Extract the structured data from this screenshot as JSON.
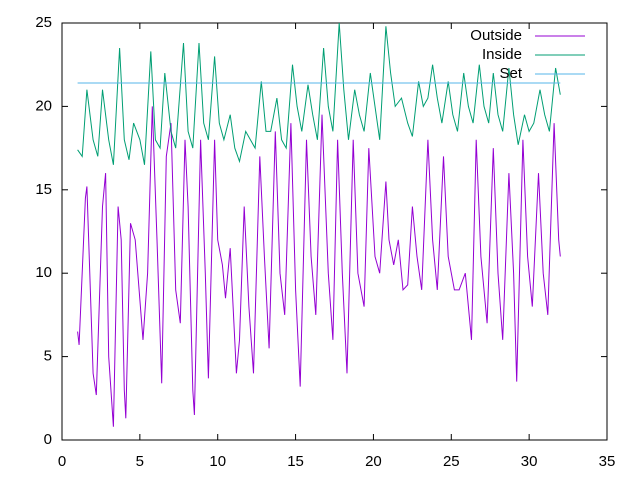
{
  "chart_data": {
    "type": "line",
    "xlim": [
      0,
      35
    ],
    "xticks": [
      0,
      5,
      10,
      15,
      20,
      25,
      30,
      35
    ],
    "ylim": [
      0,
      25
    ],
    "yticks": [
      0,
      5,
      10,
      15,
      20,
      25
    ],
    "legend": "top-right",
    "series": [
      {
        "name": "Outside",
        "color": "#9400d3",
        "x": [
          1,
          1.1,
          1.5,
          1.6,
          2.0,
          2.2,
          2.6,
          2.8,
          3.0,
          3.3,
          3.6,
          3.8,
          4.0,
          4.1,
          4.4,
          4.7,
          5.2,
          5.5,
          5.8,
          6.1,
          6.4,
          6.7,
          7.0,
          7.3,
          7.6,
          7.9,
          8.1,
          8.4,
          8.5,
          8.9,
          9.2,
          9.4,
          9.8,
          10.0,
          10.3,
          10.5,
          10.8,
          11.2,
          11.4,
          11.7,
          12.0,
          12.3,
          12.7,
          13.0,
          13.3,
          13.7,
          14.0,
          14.3,
          14.7,
          15.0,
          15.3,
          15.7,
          16.0,
          16.3,
          16.7,
          17.1,
          17.4,
          17.7,
          18.0,
          18.3,
          18.7,
          19.0,
          19.4,
          19.7,
          20.1,
          20.4,
          20.8,
          21.0,
          21.3,
          21.6,
          21.9,
          22.2,
          22.5,
          22.8,
          23.1,
          23.5,
          23.8,
          24.1,
          24.5,
          24.8,
          25.2,
          25.5,
          25.9,
          26.3,
          26.6,
          26.9,
          27.3,
          27.7,
          28.0,
          28.3,
          28.7,
          29.0,
          29.2,
          29.6,
          29.9,
          30.2,
          30.6,
          30.9,
          31.2,
          31.6,
          31.9,
          32.0
        ],
        "values": [
          6.5,
          5.7,
          14.5,
          15.2,
          4,
          2.7,
          14,
          16,
          5,
          0.8,
          14,
          12,
          3,
          1.3,
          13,
          12,
          6,
          10,
          20,
          12,
          3.4,
          17,
          19,
          9,
          7,
          18,
          14,
          3,
          1.5,
          18,
          10,
          3.7,
          18,
          12,
          10.5,
          8.5,
          11.5,
          4,
          6,
          14,
          8,
          4,
          17,
          11,
          5.5,
          18.5,
          10,
          7.5,
          19,
          9,
          3.2,
          18,
          11,
          7.5,
          19.5,
          10,
          6,
          18,
          10,
          4,
          18,
          10,
          8,
          17.5,
          11,
          10,
          15.5,
          12,
          10.5,
          12,
          9,
          9.3,
          14,
          11,
          9,
          18,
          12,
          9,
          17,
          11,
          9,
          9,
          10,
          6,
          18,
          11,
          7,
          17.5,
          10,
          6,
          16,
          10,
          3.5,
          18,
          11,
          8,
          16,
          10,
          7.5,
          19,
          12,
          11
        ]
      },
      {
        "name": "Inside",
        "color": "#009e73",
        "x": [
          1,
          1.3,
          1.6,
          2.0,
          2.3,
          2.6,
          3.0,
          3.3,
          3.7,
          4.0,
          4.3,
          4.6,
          5.0,
          5.3,
          5.7,
          6.0,
          6.3,
          6.6,
          7.0,
          7.3,
          7.8,
          8.1,
          8.4,
          8.8,
          9.1,
          9.4,
          9.8,
          10.1,
          10.4,
          10.8,
          11.1,
          11.4,
          11.8,
          12.1,
          12.4,
          12.8,
          13.1,
          13.4,
          13.8,
          14.1,
          14.4,
          14.8,
          15.1,
          15.4,
          15.8,
          16.1,
          16.4,
          16.8,
          17.1,
          17.4,
          17.8,
          18.1,
          18.4,
          18.8,
          19.1,
          19.4,
          19.8,
          20.1,
          20.4,
          20.8,
          21.1,
          21.4,
          21.8,
          22.2,
          22.5,
          22.9,
          23.2,
          23.5,
          23.8,
          24.1,
          24.4,
          24.8,
          25.1,
          25.4,
          25.8,
          26.1,
          26.4,
          26.8,
          27.1,
          27.4,
          27.7,
          28.0,
          28.3,
          28.7,
          29.0,
          29.3,
          29.7,
          30.0,
          30.3,
          30.7,
          31.0,
          31.3,
          31.7,
          32.0
        ],
        "values": [
          17.4,
          17,
          21,
          18,
          17,
          21,
          18,
          16.5,
          23.5,
          18,
          16.8,
          19,
          18,
          16.5,
          23.3,
          18,
          17.5,
          22,
          18.5,
          17.5,
          23.8,
          18.5,
          17.5,
          23.8,
          19,
          18,
          23,
          19,
          18,
          19.5,
          17.5,
          16.7,
          18.5,
          18,
          17.5,
          21.5,
          18.5,
          18.5,
          20.5,
          18,
          17.5,
          22.5,
          20,
          18.5,
          21.3,
          19.5,
          18,
          23.5,
          20,
          18.5,
          25,
          21,
          18,
          21,
          19.5,
          18.5,
          22,
          20,
          18,
          24.8,
          22,
          20,
          20.5,
          19,
          18.2,
          21.5,
          20,
          20.5,
          22.5,
          20.5,
          19,
          21.5,
          19.5,
          18.5,
          22,
          20,
          19,
          22.5,
          20,
          19,
          22,
          19.5,
          18.5,
          22.3,
          19.5,
          17.7,
          19.5,
          18.5,
          19,
          21,
          19.5,
          18.5,
          22.3,
          20.7
        ]
      },
      {
        "name": "Set",
        "color": "#56b4e9",
        "x": [
          1,
          32
        ],
        "values": [
          21.4,
          21.4
        ]
      }
    ]
  }
}
